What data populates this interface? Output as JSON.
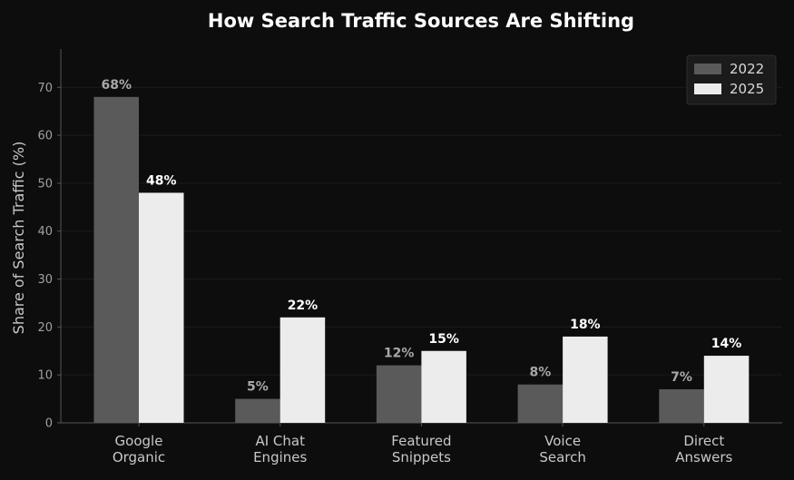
{
  "chart_data": {
    "type": "bar",
    "title": "How Search Traffic Sources Are Shifting",
    "xlabel": "",
    "ylabel": "Share of Search Traffic (%)",
    "categories": [
      [
        "Google",
        "Organic"
      ],
      [
        "AI Chat",
        "Engines"
      ],
      [
        "Featured",
        "Snippets"
      ],
      [
        "Voice",
        "Search"
      ],
      [
        "Direct",
        "Answers"
      ]
    ],
    "series": [
      {
        "name": "2022",
        "values": [
          68,
          5,
          12,
          8,
          7
        ],
        "color": "#5a5a5a",
        "label_color": "#a8a8a8"
      },
      {
        "name": "2025",
        "values": [
          48,
          22,
          15,
          18,
          14
        ],
        "color": "#ececec",
        "label_color": "#ffffff"
      }
    ],
    "value_suffix": "%",
    "ylim": [
      0,
      78
    ],
    "yticks": [
      0,
      10,
      20,
      30,
      40,
      50,
      60,
      70
    ],
    "grid": true,
    "legend_position": "top-right",
    "background_color": "#0d0d0d"
  }
}
